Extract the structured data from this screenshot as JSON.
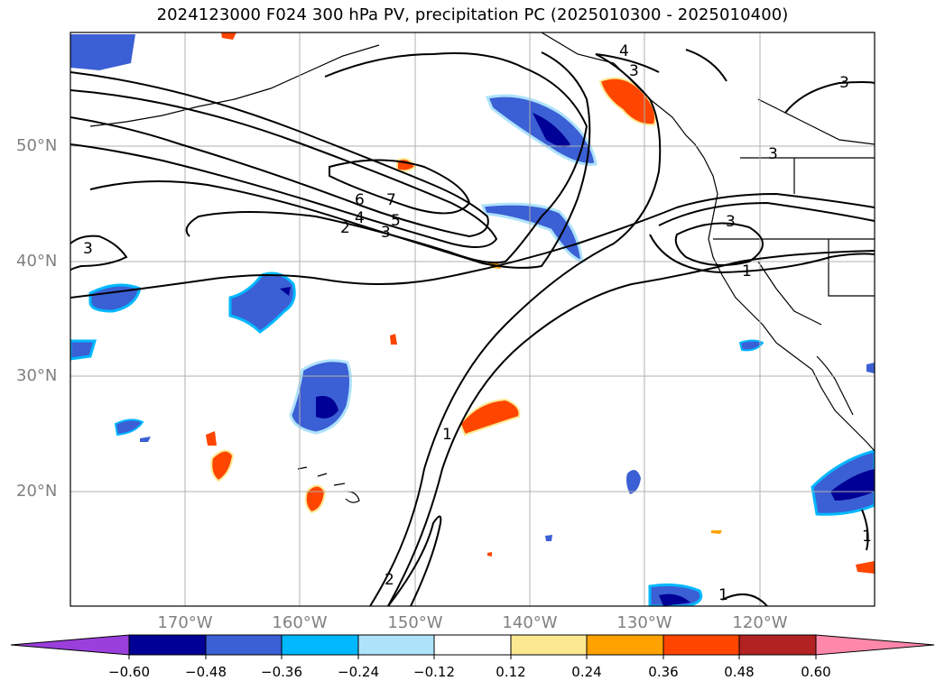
{
  "title": "2024123000 F024 300 hPa PV, precipitation PC (2025010300 - 2025010400)",
  "lat_labels": [
    "50°N",
    "40°N",
    "30°N",
    "20°N"
  ],
  "lon_labels": [
    "170°W",
    "160°W",
    "150°W",
    "140°W",
    "130°W",
    "120°W"
  ],
  "colorbar": {
    "colors": [
      "#9a3fdc",
      "#000096",
      "#3b5fd4",
      "#00b8ff",
      "#aee3fb",
      "#ffffff",
      "#fce890",
      "#ffa200",
      "#ff4500",
      "#b22222",
      "#ff88aa"
    ],
    "tick_labels": [
      "−0.60",
      "−0.48",
      "−0.36",
      "−0.24",
      "−0.12",
      "0.12",
      "0.24",
      "0.36",
      "0.48",
      "0.60"
    ]
  },
  "contour_labels": [
    "4",
    "3",
    "3",
    "6",
    "7",
    "4",
    "5",
    "2",
    "3",
    "3",
    "3",
    "1",
    "3",
    "1",
    "2",
    "1",
    "1"
  ]
}
